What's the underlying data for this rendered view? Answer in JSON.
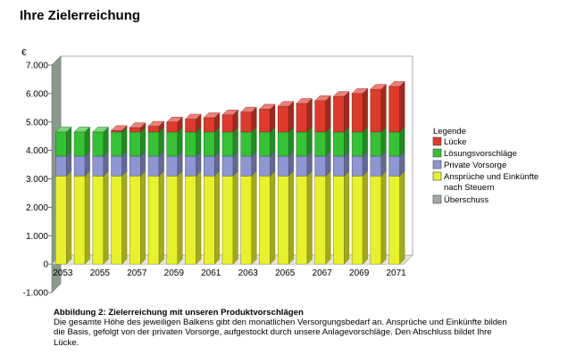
{
  "title": "Ihre Zielerreichung",
  "caption": {
    "title": "Abbildung 2: Zielerreichung mit unseren Produktvorschlägen",
    "body": "Die gesamte Höhe des jeweiligen Balkens gibt den monatlichen Versorgungsbedarf an. Ansprüche und Einkünfte bilden die Basis, gefolgt von der privaten Vorsorge, aufgestockt durch unsere Anlagevorschläge. Den Abschluss bildet Ihre Lücke."
  },
  "chart_data": {
    "type": "bar",
    "stacked": true,
    "three_d": true,
    "ylabel": "€",
    "ylim": [
      -1000,
      7000
    ],
    "yticks": [
      -1000,
      0,
      1000,
      2000,
      3000,
      4000,
      5000,
      6000,
      7000
    ],
    "ytick_labels": [
      "-1.000",
      "0",
      "1.000",
      "2.000",
      "3.000",
      "4.000",
      "5.000",
      "6.000",
      "7.000"
    ],
    "categories": [
      2053,
      2054,
      2055,
      2056,
      2057,
      2058,
      2059,
      2060,
      2061,
      2062,
      2063,
      2064,
      2065,
      2066,
      2067,
      2068,
      2069,
      2070,
      2071
    ],
    "xtick_labels": [
      "2053",
      "2055",
      "2057",
      "2059",
      "2061",
      "2063",
      "2065",
      "2067",
      "2069",
      "2071"
    ],
    "legend": {
      "title": "Legende",
      "position": "right",
      "items": [
        "Lücke",
        "Lösungsvorschläge",
        "Private Vorsorge",
        "Ansprüche und Einkünfte nach Steuern",
        "Überschuss"
      ]
    },
    "series": [
      {
        "name": "Ansprüche und Einkünfte nach Steuern",
        "color": "#e8f22a",
        "values": [
          3100,
          3100,
          3100,
          3100,
          3100,
          3100,
          3100,
          3100,
          3100,
          3100,
          3100,
          3100,
          3100,
          3100,
          3100,
          3100,
          3100,
          3100,
          3100
        ]
      },
      {
        "name": "Private Vorsorge",
        "color": "#8c96d2",
        "values": [
          700,
          700,
          700,
          700,
          700,
          700,
          700,
          700,
          700,
          700,
          700,
          700,
          700,
          700,
          700,
          700,
          700,
          700,
          700
        ]
      },
      {
        "name": "Lösungsvorschläge",
        "color": "#35c235",
        "values": [
          850,
          850,
          850,
          850,
          850,
          850,
          850,
          850,
          850,
          850,
          850,
          850,
          850,
          850,
          850,
          850,
          850,
          850,
          850
        ]
      },
      {
        "name": "Lücke",
        "color": "#e03a2c",
        "values": [
          0,
          0,
          0,
          50,
          150,
          200,
          350,
          450,
          500,
          600,
          700,
          800,
          900,
          1000,
          1100,
          1250,
          1350,
          1500,
          1600
        ]
      },
      {
        "name": "Überschuss",
        "color": "#a0a8a8",
        "values": [
          0,
          0,
          0,
          0,
          0,
          0,
          0,
          0,
          0,
          0,
          0,
          0,
          0,
          0,
          0,
          0,
          0,
          0,
          0
        ]
      }
    ],
    "grid": false
  }
}
